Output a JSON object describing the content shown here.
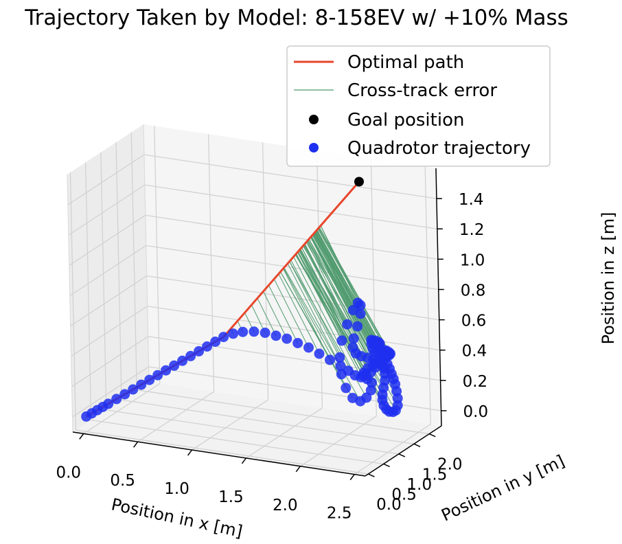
{
  "chart_data": {
    "type": "scatter",
    "title": "Trajectory Taken by Model: 8-158EV w/ +10% Mass",
    "xlabel": "Position in x [m]",
    "ylabel": "Position in y [m]",
    "zlabel": "Position in z [m]",
    "xlim": [
      -0.1,
      2.6
    ],
    "ylim": [
      -0.1,
      2.4
    ],
    "zlim": [
      -0.1,
      1.6
    ],
    "xticks": [
      "0.0",
      "0.5",
      "1.0",
      "1.5",
      "2.0",
      "2.5"
    ],
    "yticks": [
      "0.0",
      "0.5",
      "1.0",
      "1.5",
      "2.0"
    ],
    "zticks": [
      "0.0",
      "0.2",
      "0.4",
      "0.6",
      "0.8",
      "1.0",
      "1.2",
      "1.4"
    ],
    "grid": true,
    "legend_position": "upper-right",
    "legend": [
      {
        "label": "Optimal path",
        "kind": "line",
        "color": "#e8462b"
      },
      {
        "label": "Cross-track error",
        "kind": "thin-line",
        "color": "#4f9a6e"
      },
      {
        "label": "Goal position",
        "kind": "marker",
        "color": "#000000"
      },
      {
        "label": "Quadrotor trajectory",
        "kind": "marker",
        "color": "#1f2ff0"
      }
    ],
    "optimal_path": {
      "name": "Optimal path",
      "color": "#e8462b",
      "points": [
        [
          0.0,
          0.0,
          0.0
        ],
        [
          1.0,
          1.0,
          0.5
        ],
        [
          2.0,
          2.0,
          1.5
        ]
      ]
    },
    "goal": {
      "name": "Goal position",
      "color": "#000000",
      "point": [
        2.0,
        2.0,
        1.5
      ]
    },
    "trajectory": {
      "name": "Quadrotor trajectory",
      "color": "#1f2ff0",
      "points": [
        [
          0.0,
          0.0,
          0.0
        ],
        [
          0.04,
          0.04,
          0.02
        ],
        [
          0.08,
          0.08,
          0.04
        ],
        [
          0.12,
          0.12,
          0.06
        ],
        [
          0.16,
          0.16,
          0.08
        ],
        [
          0.22,
          0.22,
          0.11
        ],
        [
          0.28,
          0.28,
          0.14
        ],
        [
          0.34,
          0.34,
          0.17
        ],
        [
          0.4,
          0.4,
          0.2
        ],
        [
          0.46,
          0.46,
          0.23
        ],
        [
          0.52,
          0.52,
          0.26
        ],
        [
          0.58,
          0.58,
          0.29
        ],
        [
          0.64,
          0.64,
          0.32
        ],
        [
          0.7,
          0.7,
          0.35
        ],
        [
          0.76,
          0.76,
          0.38
        ],
        [
          0.82,
          0.82,
          0.41
        ],
        [
          0.88,
          0.88,
          0.44
        ],
        [
          0.94,
          0.94,
          0.47
        ],
        [
          1.0,
          1.0,
          0.5
        ],
        [
          1.07,
          1.07,
          0.52
        ],
        [
          1.14,
          1.14,
          0.53
        ],
        [
          1.22,
          1.22,
          0.53
        ],
        [
          1.3,
          1.3,
          0.52
        ],
        [
          1.38,
          1.37,
          0.5
        ],
        [
          1.46,
          1.44,
          0.48
        ],
        [
          1.54,
          1.51,
          0.45
        ],
        [
          1.62,
          1.58,
          0.42
        ],
        [
          1.7,
          1.64,
          0.38
        ],
        [
          1.78,
          1.7,
          0.34
        ],
        [
          1.86,
          1.76,
          0.3
        ],
        [
          1.92,
          1.8,
          0.27
        ],
        [
          1.97,
          1.84,
          0.24
        ],
        [
          2.02,
          1.86,
          0.23
        ],
        [
          2.07,
          1.88,
          0.22
        ],
        [
          2.11,
          1.89,
          0.2
        ],
        [
          2.12,
          1.82,
          0.16
        ],
        [
          2.1,
          1.74,
          0.12
        ],
        [
          2.06,
          1.68,
          0.1
        ],
        [
          2.0,
          1.64,
          0.12
        ],
        [
          1.94,
          1.64,
          0.18
        ],
        [
          1.89,
          1.68,
          0.26
        ],
        [
          1.86,
          1.74,
          0.36
        ],
        [
          1.86,
          1.82,
          0.46
        ],
        [
          1.89,
          1.9,
          0.56
        ],
        [
          1.93,
          1.96,
          0.65
        ],
        [
          1.97,
          1.98,
          0.7
        ],
        [
          2.0,
          1.96,
          0.69
        ],
        [
          2.01,
          1.92,
          0.64
        ],
        [
          1.99,
          1.88,
          0.56
        ],
        [
          1.96,
          1.86,
          0.48
        ],
        [
          1.95,
          1.86,
          0.42
        ],
        [
          1.97,
          1.88,
          0.38
        ],
        [
          2.01,
          1.92,
          0.36
        ],
        [
          2.06,
          1.96,
          0.35
        ],
        [
          2.1,
          1.99,
          0.34
        ],
        [
          2.12,
          2.0,
          0.32
        ],
        [
          2.12,
          1.98,
          0.29
        ],
        [
          2.09,
          1.94,
          0.26
        ],
        [
          2.05,
          1.9,
          0.24
        ],
        [
          2.03,
          1.88,
          0.24
        ],
        [
          2.04,
          1.88,
          0.26
        ],
        [
          2.07,
          1.91,
          0.29
        ],
        [
          2.11,
          1.94,
          0.31
        ],
        [
          2.15,
          1.97,
          0.32
        ],
        [
          2.18,
          1.99,
          0.31
        ],
        [
          2.2,
          1.99,
          0.29
        ],
        [
          2.21,
          1.97,
          0.26
        ],
        [
          2.22,
          1.93,
          0.22
        ],
        [
          2.22,
          1.88,
          0.18
        ],
        [
          2.22,
          1.84,
          0.14
        ],
        [
          2.23,
          1.8,
          0.11
        ],
        [
          2.25,
          1.77,
          0.08
        ],
        [
          2.28,
          1.75,
          0.06
        ],
        [
          2.31,
          1.74,
          0.05
        ],
        [
          2.34,
          1.75,
          0.05
        ],
        [
          2.36,
          1.77,
          0.06
        ],
        [
          2.37,
          1.8,
          0.09
        ],
        [
          2.36,
          1.84,
          0.13
        ],
        [
          2.34,
          1.88,
          0.17
        ],
        [
          2.32,
          1.91,
          0.21
        ],
        [
          2.3,
          1.93,
          0.24
        ],
        [
          2.28,
          1.94,
          0.27
        ],
        [
          2.26,
          1.95,
          0.3
        ],
        [
          2.24,
          1.95,
          0.33
        ],
        [
          2.22,
          1.94,
          0.36
        ],
        [
          2.21,
          1.93,
          0.39
        ],
        [
          2.21,
          1.92,
          0.41
        ],
        [
          2.22,
          1.92,
          0.42
        ],
        [
          2.24,
          1.93,
          0.42
        ],
        [
          2.26,
          1.94,
          0.41
        ],
        [
          2.27,
          1.95,
          0.4
        ],
        [
          2.26,
          1.95,
          0.39
        ],
        [
          2.24,
          1.94,
          0.38
        ],
        [
          2.21,
          1.92,
          0.38
        ],
        [
          2.18,
          1.9,
          0.39
        ],
        [
          2.15,
          1.88,
          0.41
        ],
        [
          2.13,
          1.87,
          0.43
        ],
        [
          2.12,
          1.87,
          0.46
        ],
        [
          2.13,
          1.88,
          0.48
        ],
        [
          2.15,
          1.9,
          0.48
        ],
        [
          2.17,
          1.92,
          0.47
        ],
        [
          2.18,
          1.93,
          0.46
        ],
        [
          2.17,
          1.93,
          0.45
        ],
        [
          2.15,
          1.92,
          0.45
        ],
        [
          2.13,
          1.91,
          0.46
        ],
        [
          2.11,
          1.9,
          0.48
        ]
      ]
    }
  }
}
